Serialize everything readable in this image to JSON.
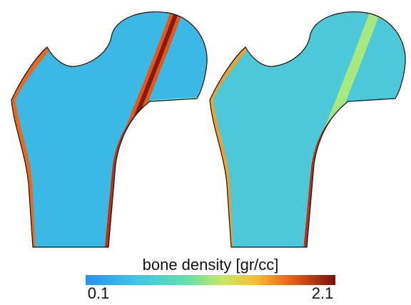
{
  "colorbar": {
    "label": "bone density [gr/cc]",
    "min": 0.1,
    "max": 2.1
  }
}
